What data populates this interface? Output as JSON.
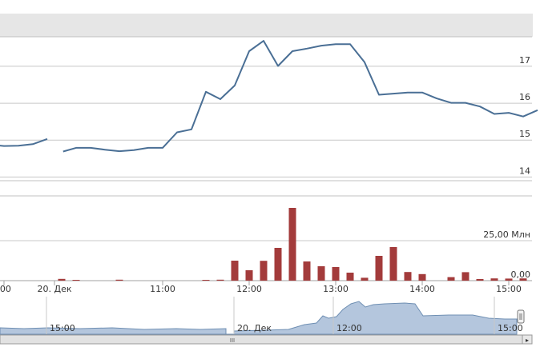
{
  "chart_data": [
    {
      "type": "line",
      "title": "",
      "series_color": "#4a6f95",
      "y_ticks": [
        {
          "value": 14,
          "label": "14"
        },
        {
          "value": 15,
          "label": "15"
        },
        {
          "value": 16,
          "label": "16"
        },
        {
          "value": 17,
          "label": "17"
        }
      ],
      "ylim": [
        13.9,
        17.8
      ],
      "segments": [
        [
          {
            "x": "09:55",
            "y": 14.88
          },
          {
            "x": "10:05",
            "y": 14.84
          },
          {
            "x": "10:15",
            "y": 14.85
          },
          {
            "x": "10:25",
            "y": 14.89
          },
          {
            "x": "10:35",
            "y": 15.03
          }
        ],
        [
          {
            "x": "10:46",
            "y": 14.69
          },
          {
            "x": "10:55",
            "y": 14.79
          },
          {
            "x": "11:05",
            "y": 14.79
          },
          {
            "x": "11:15",
            "y": 14.74
          },
          {
            "x": "11:25",
            "y": 14.7
          },
          {
            "x": "11:35",
            "y": 14.73
          },
          {
            "x": "11:45",
            "y": 14.79
          },
          {
            "x": "11:55",
            "y": 14.79
          },
          {
            "x": "12:05",
            "y": 15.21
          },
          {
            "x": "12:15",
            "y": 15.29
          },
          {
            "x": "12:25",
            "y": 16.31
          },
          {
            "x": "12:35",
            "y": 16.11
          },
          {
            "x": "12:45",
            "y": 16.48
          },
          {
            "x": "12:55",
            "y": 17.41
          },
          {
            "x": "13:05",
            "y": 17.69
          },
          {
            "x": "13:15",
            "y": 17.01
          },
          {
            "x": "13:25",
            "y": 17.41
          },
          {
            "x": "13:35",
            "y": 17.48
          },
          {
            "x": "13:45",
            "y": 17.56
          },
          {
            "x": "13:55",
            "y": 17.6
          },
          {
            "x": "14:05",
            "y": 17.6
          },
          {
            "x": "14:15",
            "y": 17.11
          },
          {
            "x": "14:25",
            "y": 16.23
          },
          {
            "x": "14:35",
            "y": 16.26
          },
          {
            "x": "14:45",
            "y": 16.29
          },
          {
            "x": "14:55",
            "y": 16.29
          },
          {
            "x": "15:05",
            "y": 16.13
          },
          {
            "x": "15:15",
            "y": 16.01
          },
          {
            "x": "15:25",
            "y": 16.01
          },
          {
            "x": "15:35",
            "y": 15.91
          },
          {
            "x": "15:45",
            "y": 15.71
          },
          {
            "x": "15:55",
            "y": 15.74
          },
          {
            "x": "16:05",
            "y": 15.64
          },
          {
            "x": "16:15",
            "y": 15.81
          }
        ]
      ]
    },
    {
      "type": "bar",
      "bar_color": "#a33b3b",
      "y_ticks": [
        {
          "value": 0,
          "label": "0,00"
        },
        {
          "value": 25,
          "label": "25,00 Млн"
        }
      ],
      "ylim": [
        0,
        51
      ],
      "bars": [
        {
          "x": "10:45",
          "value": 1.1
        },
        {
          "x": "10:55",
          "value": 0.5
        },
        {
          "x": "11:25",
          "value": 0.6
        },
        {
          "x": "12:25",
          "value": 0.5
        },
        {
          "x": "12:35",
          "value": 0.6
        },
        {
          "x": "12:45",
          "value": 12.5
        },
        {
          "x": "12:55",
          "value": 6.5
        },
        {
          "x": "13:05",
          "value": 12.4
        },
        {
          "x": "13:15",
          "value": 20.5
        },
        {
          "x": "13:25",
          "value": 45.5
        },
        {
          "x": "13:35",
          "value": 12.0
        },
        {
          "x": "13:45",
          "value": 9.0
        },
        {
          "x": "13:55",
          "value": 8.5
        },
        {
          "x": "14:05",
          "value": 5.0
        },
        {
          "x": "14:15",
          "value": 1.8
        },
        {
          "x": "14:25",
          "value": 15.5
        },
        {
          "x": "14:35",
          "value": 21.0
        },
        {
          "x": "14:45",
          "value": 5.4
        },
        {
          "x": "14:55",
          "value": 4.1
        },
        {
          "x": "15:15",
          "value": 2.2
        },
        {
          "x": "15:25",
          "value": 5.3
        },
        {
          "x": "15:35",
          "value": 1.0
        },
        {
          "x": "15:45",
          "value": 1.4
        },
        {
          "x": "15:55",
          "value": 1.3
        },
        {
          "x": "16:05",
          "value": 1.4
        }
      ],
      "x_ticks": [
        {
          "x": "10:05",
          "label": ":00"
        },
        {
          "x": "10:40",
          "label": "20. Дек"
        },
        {
          "x": "11:55",
          "label": "11:00"
        },
        {
          "x": "12:55",
          "label": "12:00"
        },
        {
          "x": "13:55",
          "label": "13:00"
        },
        {
          "x": "14:55",
          "label": "14:00"
        },
        {
          "x": "15:55",
          "label": "15:00"
        }
      ]
    }
  ],
  "navigator": {
    "fill_color": "#b4c6dd",
    "line_color": "#6f8fb3",
    "labels": [
      "15:00",
      "20. Дек",
      "12:00",
      "15:00"
    ],
    "scrollbar_grip": "III",
    "scroll_arrow": "▸"
  }
}
